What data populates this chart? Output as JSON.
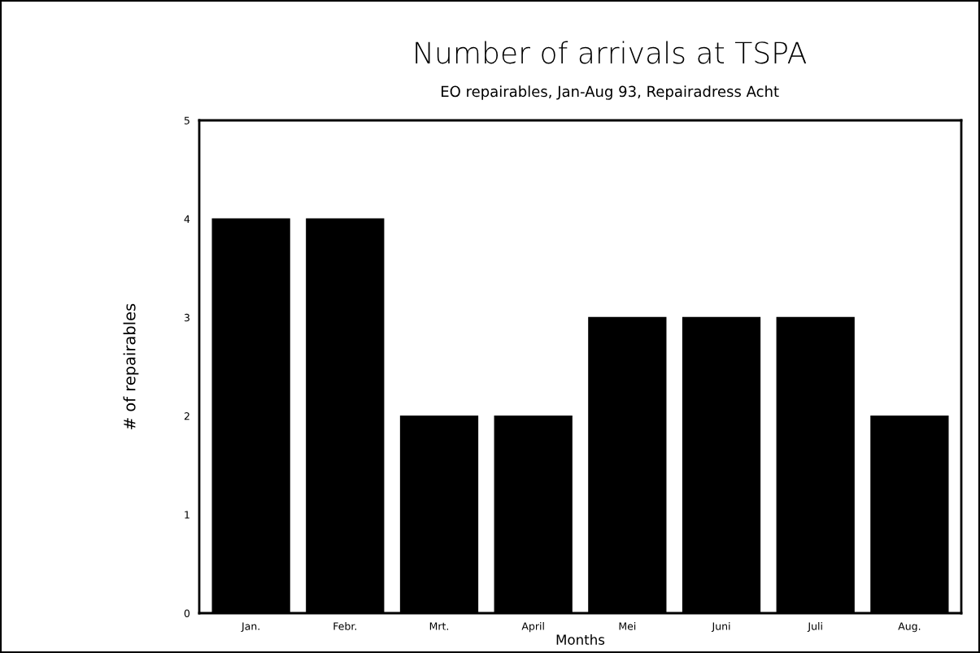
{
  "chart_data": {
    "type": "bar",
    "title": "Number of arrivals at TSPA",
    "subtitle": "EO repairables, Jan-Aug 93, Repairadress Acht",
    "xlabel": "Months",
    "ylabel": "# of repairables",
    "categories": [
      "Jan.",
      "Febr.",
      "Mrt.",
      "April",
      "Mei",
      "Juni",
      "Juli",
      "Aug."
    ],
    "values": [
      4,
      4,
      2,
      2,
      3,
      3,
      3,
      2
    ],
    "color": "#000000",
    "ylim": [
      0,
      5
    ],
    "yticks": [
      0,
      1,
      2,
      3,
      4,
      5
    ],
    "grid": false,
    "legend": false
  }
}
